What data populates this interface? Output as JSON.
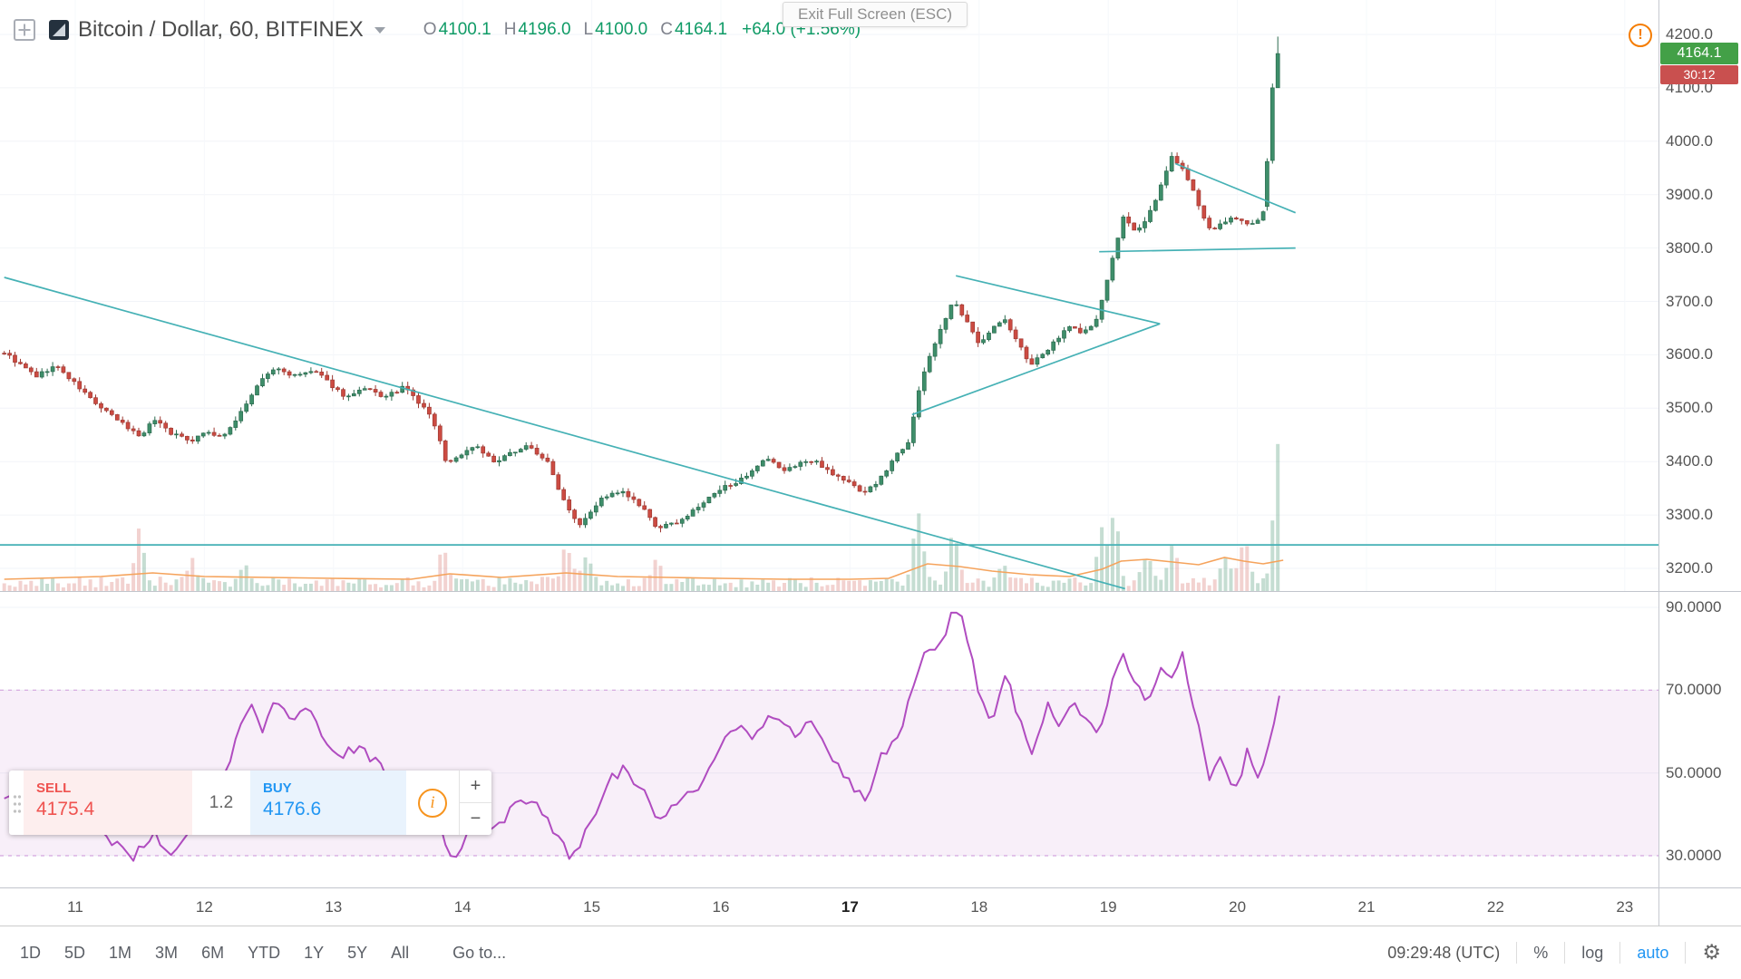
{
  "topbar": {
    "symbol_title": "Bitcoin / Dollar, 60, BITFINEX",
    "o_label": "O",
    "o_value": "4100.1",
    "h_label": "H",
    "h_value": "4196.0",
    "l_label": "L",
    "l_value": "4100.0",
    "c_label": "C",
    "c_value": "4164.1",
    "change_value": "+64.0 (+1.56%)",
    "fullscreen_tooltip": "Exit Full Screen (ESC)",
    "warning_glyph": "!"
  },
  "trade_panel": {
    "sell_label": "SELL",
    "sell_price": "4175.4",
    "spread": "1.2",
    "buy_label": "BUY",
    "buy_price": "4176.6",
    "info_glyph": "i",
    "plus_label": "+",
    "minus_label": "−"
  },
  "toolbar": {
    "ranges": [
      "1D",
      "5D",
      "1M",
      "3M",
      "6M",
      "YTD",
      "1Y",
      "5Y",
      "All"
    ],
    "goto_label": "Go to...",
    "clock": "09:29:48 (UTC)",
    "percent_label": "%",
    "log_label": "log",
    "auto_label": "auto"
  },
  "price_axis": {
    "ticks": [
      4200,
      4100,
      4000,
      3900,
      3800,
      3700,
      3600,
      3500,
      3400,
      3300,
      3200
    ],
    "last_price": "4164.1",
    "countdown": "30:12"
  },
  "rsi_axis": {
    "ticks": [
      90,
      70,
      50,
      30
    ]
  },
  "time_axis": {
    "ticks": [
      "11",
      "12",
      "13",
      "14",
      "15",
      "16",
      "17",
      "18",
      "19",
      "20",
      "21",
      "22",
      "23"
    ],
    "bold": "17"
  },
  "chart_data": {
    "type": "candlestick",
    "symbol": "Bitcoin / Dollar",
    "interval": "60",
    "exchange": "BITFINEX",
    "ohlc_current": {
      "open": 4100.1,
      "high": 4196.0,
      "low": 4100.0,
      "close": 4164.1,
      "change": 64.0,
      "change_pct": 1.56
    },
    "day_start": 10.45,
    "day_end": 20.355,
    "price_path": [
      [
        10.45,
        3605
      ],
      [
        10.55,
        3585
      ],
      [
        10.7,
        3560
      ],
      [
        10.85,
        3580
      ],
      [
        11.0,
        3545
      ],
      [
        11.2,
        3500
      ],
      [
        11.4,
        3465
      ],
      [
        11.5,
        3448
      ],
      [
        11.62,
        3480
      ],
      [
        11.75,
        3452
      ],
      [
        11.9,
        3440
      ],
      [
        12.0,
        3456
      ],
      [
        12.15,
        3445
      ],
      [
        12.3,
        3500
      ],
      [
        12.45,
        3555
      ],
      [
        12.55,
        3575
      ],
      [
        12.7,
        3560
      ],
      [
        12.85,
        3570
      ],
      [
        13.0,
        3540
      ],
      [
        13.1,
        3520
      ],
      [
        13.25,
        3536
      ],
      [
        13.4,
        3520
      ],
      [
        13.55,
        3540
      ],
      [
        13.65,
        3512
      ],
      [
        13.75,
        3488
      ],
      [
        13.82,
        3440
      ],
      [
        13.88,
        3395
      ],
      [
        14.0,
        3415
      ],
      [
        14.1,
        3432
      ],
      [
        14.25,
        3396
      ],
      [
        14.4,
        3420
      ],
      [
        14.5,
        3430
      ],
      [
        14.65,
        3402
      ],
      [
        14.78,
        3330
      ],
      [
        14.9,
        3282
      ],
      [
        15.0,
        3310
      ],
      [
        15.1,
        3336
      ],
      [
        15.25,
        3342
      ],
      [
        15.4,
        3310
      ],
      [
        15.5,
        3276
      ],
      [
        15.62,
        3282
      ],
      [
        15.75,
        3300
      ],
      [
        15.9,
        3330
      ],
      [
        16.05,
        3356
      ],
      [
        16.2,
        3370
      ],
      [
        16.35,
        3405
      ],
      [
        16.5,
        3382
      ],
      [
        16.62,
        3400
      ],
      [
        16.75,
        3398
      ],
      [
        16.9,
        3372
      ],
      [
        17.0,
        3360
      ],
      [
        17.1,
        3342
      ],
      [
        17.22,
        3362
      ],
      [
        17.35,
        3410
      ],
      [
        17.45,
        3438
      ],
      [
        17.53,
        3530
      ],
      [
        17.62,
        3600
      ],
      [
        17.7,
        3648
      ],
      [
        17.8,
        3700
      ],
      [
        17.9,
        3662
      ],
      [
        18.0,
        3622
      ],
      [
        18.1,
        3650
      ],
      [
        18.2,
        3665
      ],
      [
        18.3,
        3622
      ],
      [
        18.4,
        3582
      ],
      [
        18.5,
        3600
      ],
      [
        18.6,
        3630
      ],
      [
        18.7,
        3655
      ],
      [
        18.8,
        3640
      ],
      [
        18.9,
        3660
      ],
      [
        18.97,
        3715
      ],
      [
        19.05,
        3800
      ],
      [
        19.12,
        3858
      ],
      [
        19.2,
        3830
      ],
      [
        19.3,
        3856
      ],
      [
        19.4,
        3910
      ],
      [
        19.5,
        3975
      ],
      [
        19.58,
        3944
      ],
      [
        19.65,
        3910
      ],
      [
        19.72,
        3870
      ],
      [
        19.8,
        3830
      ],
      [
        19.9,
        3850
      ],
      [
        20.0,
        3856
      ],
      [
        20.1,
        3840
      ],
      [
        20.2,
        3866
      ],
      [
        20.23,
        3876
      ]
    ],
    "last_bars": [
      [
        3878,
        3968,
        3870,
        3962
      ],
      [
        3964,
        4108,
        3958,
        4100
      ],
      [
        4100.1,
        4196.0,
        4100.0,
        4164.1
      ]
    ],
    "volume_spikes": [
      [
        11.5,
        55
      ],
      [
        11.9,
        25
      ],
      [
        12.3,
        20
      ],
      [
        13.85,
        35
      ],
      [
        14.8,
        45
      ],
      [
        14.95,
        30
      ],
      [
        15.5,
        20
      ],
      [
        17.53,
        80
      ],
      [
        17.8,
        50
      ],
      [
        18.2,
        18
      ],
      [
        18.95,
        55
      ],
      [
        19.05,
        70
      ],
      [
        19.3,
        25
      ],
      [
        19.5,
        40
      ],
      [
        19.9,
        30
      ],
      [
        20.05,
        45
      ],
      [
        20.32,
        160
      ]
    ],
    "volume_ma": [
      [
        10.45,
        13
      ],
      [
        11.2,
        16
      ],
      [
        11.6,
        20
      ],
      [
        12.0,
        16
      ],
      [
        12.5,
        15
      ],
      [
        13.0,
        14
      ],
      [
        13.6,
        13
      ],
      [
        13.9,
        19
      ],
      [
        14.3,
        15
      ],
      [
        14.8,
        20
      ],
      [
        15.2,
        16
      ],
      [
        15.6,
        15
      ],
      [
        16.0,
        14
      ],
      [
        16.5,
        13
      ],
      [
        17.0,
        13
      ],
      [
        17.3,
        14
      ],
      [
        17.6,
        30
      ],
      [
        17.85,
        27
      ],
      [
        18.1,
        22
      ],
      [
        18.4,
        18
      ],
      [
        18.7,
        16
      ],
      [
        18.95,
        24
      ],
      [
        19.1,
        33
      ],
      [
        19.3,
        35
      ],
      [
        19.5,
        32
      ],
      [
        19.7,
        29
      ],
      [
        19.9,
        37
      ],
      [
        20.05,
        33
      ],
      [
        20.2,
        30
      ],
      [
        20.355,
        34
      ]
    ],
    "rsi_path": [
      [
        10.45,
        44
      ],
      [
        10.7,
        39
      ],
      [
        10.9,
        42
      ],
      [
        11.1,
        38
      ],
      [
        11.3,
        33
      ],
      [
        11.45,
        30
      ],
      [
        11.6,
        35
      ],
      [
        11.75,
        31
      ],
      [
        11.95,
        38
      ],
      [
        12.1,
        46
      ],
      [
        12.25,
        58
      ],
      [
        12.35,
        67
      ],
      [
        12.45,
        61
      ],
      [
        12.55,
        68
      ],
      [
        12.65,
        63
      ],
      [
        12.78,
        66
      ],
      [
        12.9,
        60
      ],
      [
        13.05,
        54
      ],
      [
        13.2,
        57
      ],
      [
        13.35,
        52
      ],
      [
        13.5,
        45
      ],
      [
        13.6,
        51
      ],
      [
        13.72,
        47
      ],
      [
        13.85,
        34
      ],
      [
        13.95,
        29
      ],
      [
        14.1,
        40
      ],
      [
        14.25,
        36
      ],
      [
        14.4,
        43
      ],
      [
        14.55,
        44
      ],
      [
        14.7,
        37
      ],
      [
        14.85,
        29
      ],
      [
        15.0,
        38
      ],
      [
        15.12,
        47
      ],
      [
        15.25,
        52
      ],
      [
        15.4,
        45
      ],
      [
        15.52,
        38
      ],
      [
        15.65,
        43
      ],
      [
        15.8,
        45
      ],
      [
        15.95,
        53
      ],
      [
        16.1,
        62
      ],
      [
        16.25,
        57
      ],
      [
        16.4,
        65
      ],
      [
        16.55,
        59
      ],
      [
        16.7,
        63
      ],
      [
        16.85,
        54
      ],
      [
        17.0,
        48
      ],
      [
        17.12,
        44
      ],
      [
        17.25,
        54
      ],
      [
        17.4,
        60
      ],
      [
        17.5,
        73
      ],
      [
        17.6,
        81
      ],
      [
        17.68,
        78
      ],
      [
        17.78,
        89
      ],
      [
        17.88,
        87
      ],
      [
        17.98,
        72
      ],
      [
        18.1,
        62
      ],
      [
        18.2,
        74
      ],
      [
        18.3,
        64
      ],
      [
        18.42,
        55
      ],
      [
        18.52,
        67
      ],
      [
        18.62,
        60
      ],
      [
        18.72,
        69
      ],
      [
        18.82,
        62
      ],
      [
        18.92,
        59
      ],
      [
        19.0,
        68
      ],
      [
        19.1,
        80
      ],
      [
        19.2,
        71
      ],
      [
        19.3,
        67
      ],
      [
        19.42,
        77
      ],
      [
        19.5,
        71
      ],
      [
        19.58,
        79
      ],
      [
        19.68,
        63
      ],
      [
        19.78,
        48
      ],
      [
        19.88,
        54
      ],
      [
        19.98,
        46
      ],
      [
        20.08,
        55
      ],
      [
        20.15,
        47
      ],
      [
        20.25,
        57
      ],
      [
        20.355,
        74
      ]
    ],
    "rsi_band": [
      30,
      70
    ],
    "trendlines": [
      [
        [
          10.45,
          3745
        ],
        [
          19.13,
          3162
        ]
      ],
      [
        [
          17.48,
          3488
        ],
        [
          19.4,
          3658
        ]
      ],
      [
        [
          17.82,
          3748
        ],
        [
          19.4,
          3658
        ]
      ],
      [
        [
          18.93,
          3793
        ],
        [
          20.45,
          3800
        ]
      ],
      [
        [
          19.52,
          3958
        ],
        [
          20.45,
          3866
        ]
      ]
    ],
    "horizontal_line_price": 3244,
    "colors": {
      "up": "#3e8e6a",
      "up_border": "#2b6a4e",
      "down": "#cc4b42",
      "down_border": "#9e3a33",
      "vol_up": "rgba(62,142,106,0.3)",
      "vol_down": "rgba(204,75,66,0.25)",
      "trend": "#45b1b5",
      "rsi": "#b04cc0",
      "rsi_band": "rgba(176,76,192,0.09)",
      "rsi_dash": "rgba(176,76,192,0.45)",
      "volume_ma": "#f5a35c",
      "badge_up": "#43a047",
      "badge_countdown": "#c9504f",
      "ohlc_green": "#0f9b66",
      "sell": "#ef5350",
      "buy": "#2196f3",
      "info_orange": "#f7941e",
      "warning_orange": "#f57c00"
    }
  }
}
